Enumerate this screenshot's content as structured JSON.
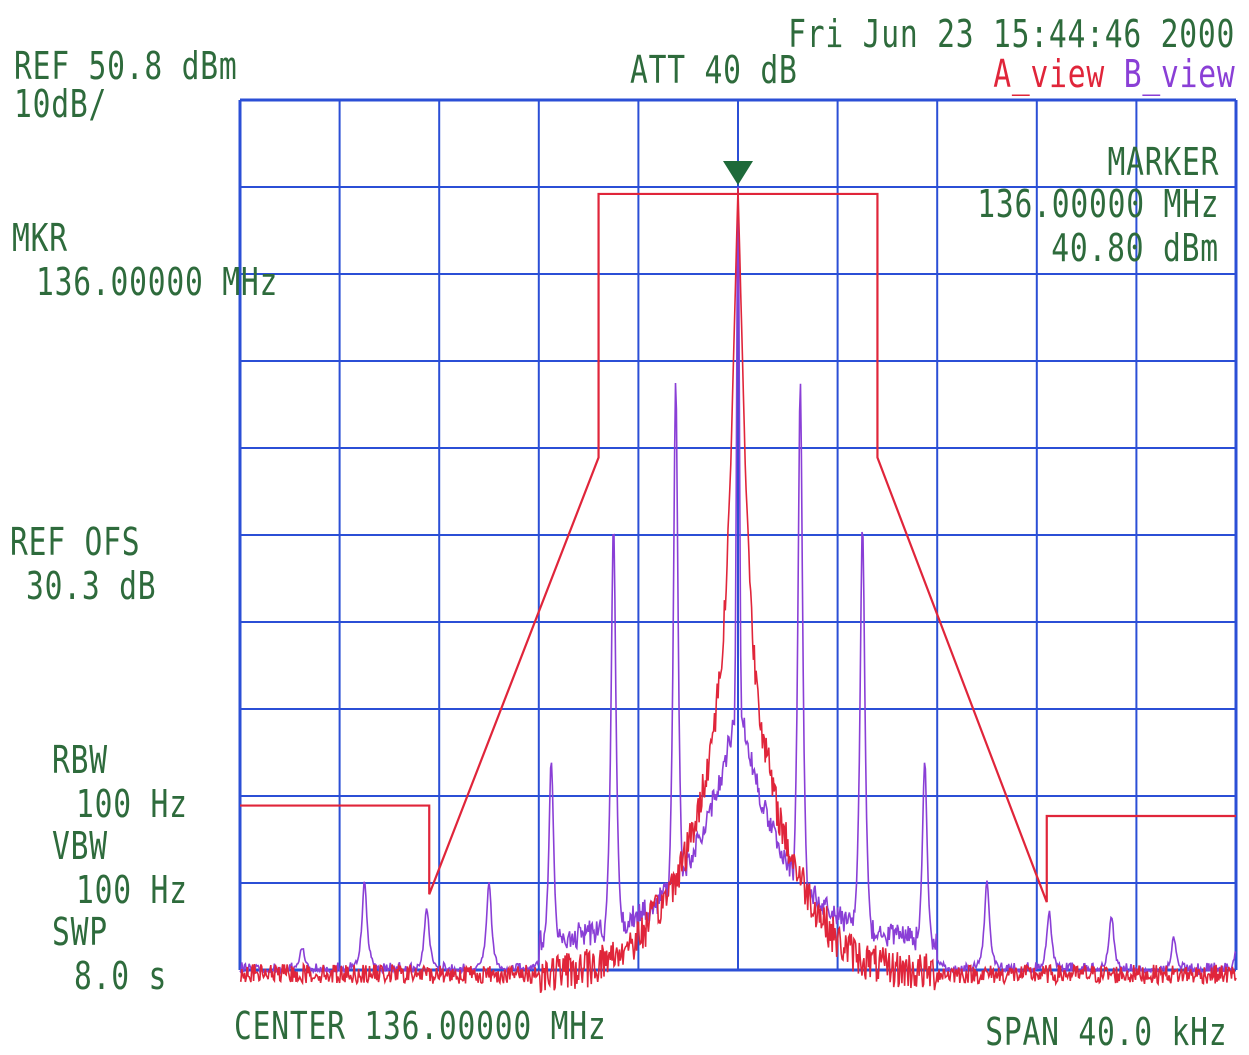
{
  "header": {
    "datetime": "Fri Jun 23 15:44:46 2000",
    "ref_level": "REF 50.8 dBm",
    "scale": "10dB/",
    "attenuation": "ATT 40 dB",
    "view_a": "A_view",
    "view_b": "B_view"
  },
  "marker": {
    "title": "MARKER",
    "freq": "136.00000 MHz",
    "level": "40.80 dBm"
  },
  "left_panel": {
    "mkr_label": "MKR",
    "mkr_freq": "136.00000 MHz",
    "ref_ofs_label": "REF OFS",
    "ref_ofs_value": "30.3 dB",
    "rbw_label": "RBW",
    "rbw_value": "100 Hz",
    "vbw_label": "VBW",
    "vbw_value": "100 Hz",
    "swp_label": "SWP",
    "swp_value": "8.0 s"
  },
  "footer": {
    "center": "CENTER 136.00000 MHz",
    "span": "SPAN 40.0 kHz"
  },
  "colors": {
    "grid": "#2b4fd6",
    "text": "#2e6b3c",
    "trace_a": "#e0253a",
    "trace_b": "#8a3fd6",
    "mask": "#e0253a",
    "marker": "#1e6a3a"
  },
  "chart_data": {
    "type": "line",
    "title": "",
    "xlabel": "",
    "ylabel": "",
    "x_unit": "kHz offset from center",
    "y_unit": "dBm",
    "xlim": [
      -20,
      20
    ],
    "ylim": [
      -49.2,
      50.8
    ],
    "grid": true,
    "legend": "top-right",
    "marker_point": {
      "x": 0,
      "y": 40.8
    },
    "series": [
      {
        "name": "A_view",
        "role": "mask",
        "x": [
          -20,
          -12.4,
          -12.4,
          -5.6,
          -5.6,
          5.6,
          5.6,
          12.4,
          12.4,
          20
        ],
        "y": [
          -30.3,
          -30.3,
          -40.5,
          9.7,
          40.0,
          40.0,
          9.7,
          -41.4,
          -31.5,
          -31.5
        ]
      },
      {
        "name": "A_view",
        "role": "trace",
        "x": [
          -20,
          -10,
          -8,
          -6,
          -5,
          -4,
          -3,
          -2.5,
          -2,
          -1.5,
          -1,
          -0.6,
          -0.3,
          0,
          0.3,
          0.6,
          1,
          1.5,
          2,
          2.5,
          3,
          4,
          5,
          6,
          8,
          10,
          20
        ],
        "y": [
          -49.6,
          -49.7,
          -49.7,
          -49.0,
          -47.6,
          -45.5,
          -41.5,
          -38.5,
          -35.0,
          -30.0,
          -22.0,
          -12.0,
          8.0,
          40.8,
          8.0,
          -12.0,
          -22.0,
          -30.0,
          -35.0,
          -38.5,
          -41.5,
          -46.0,
          -48.0,
          -49.0,
          -49.6,
          -49.7,
          -49.7
        ]
      },
      {
        "name": "B_view",
        "role": "trace",
        "baseline": -49.5,
        "peaks": [
          {
            "x": -17.5,
            "y": -46.5
          },
          {
            "x": -15.0,
            "y": -39.0
          },
          {
            "x": -12.5,
            "y": -42.0
          },
          {
            "x": -10.0,
            "y": -39.0
          },
          {
            "x": -7.5,
            "y": -25.0
          },
          {
            "x": -5.0,
            "y": 2.0
          },
          {
            "x": -2.5,
            "y": 18.5
          },
          {
            "x": 0.0,
            "y": 40.8
          },
          {
            "x": 2.5,
            "y": 18.5
          },
          {
            "x": 5.0,
            "y": 2.0
          },
          {
            "x": 7.5,
            "y": -25.0
          },
          {
            "x": 10.0,
            "y": -39.0
          },
          {
            "x": 12.5,
            "y": -42.5
          },
          {
            "x": 15.0,
            "y": -43.0
          },
          {
            "x": 17.5,
            "y": -45.5
          },
          {
            "x": 20.0,
            "y": -47.0
          }
        ]
      }
    ]
  }
}
